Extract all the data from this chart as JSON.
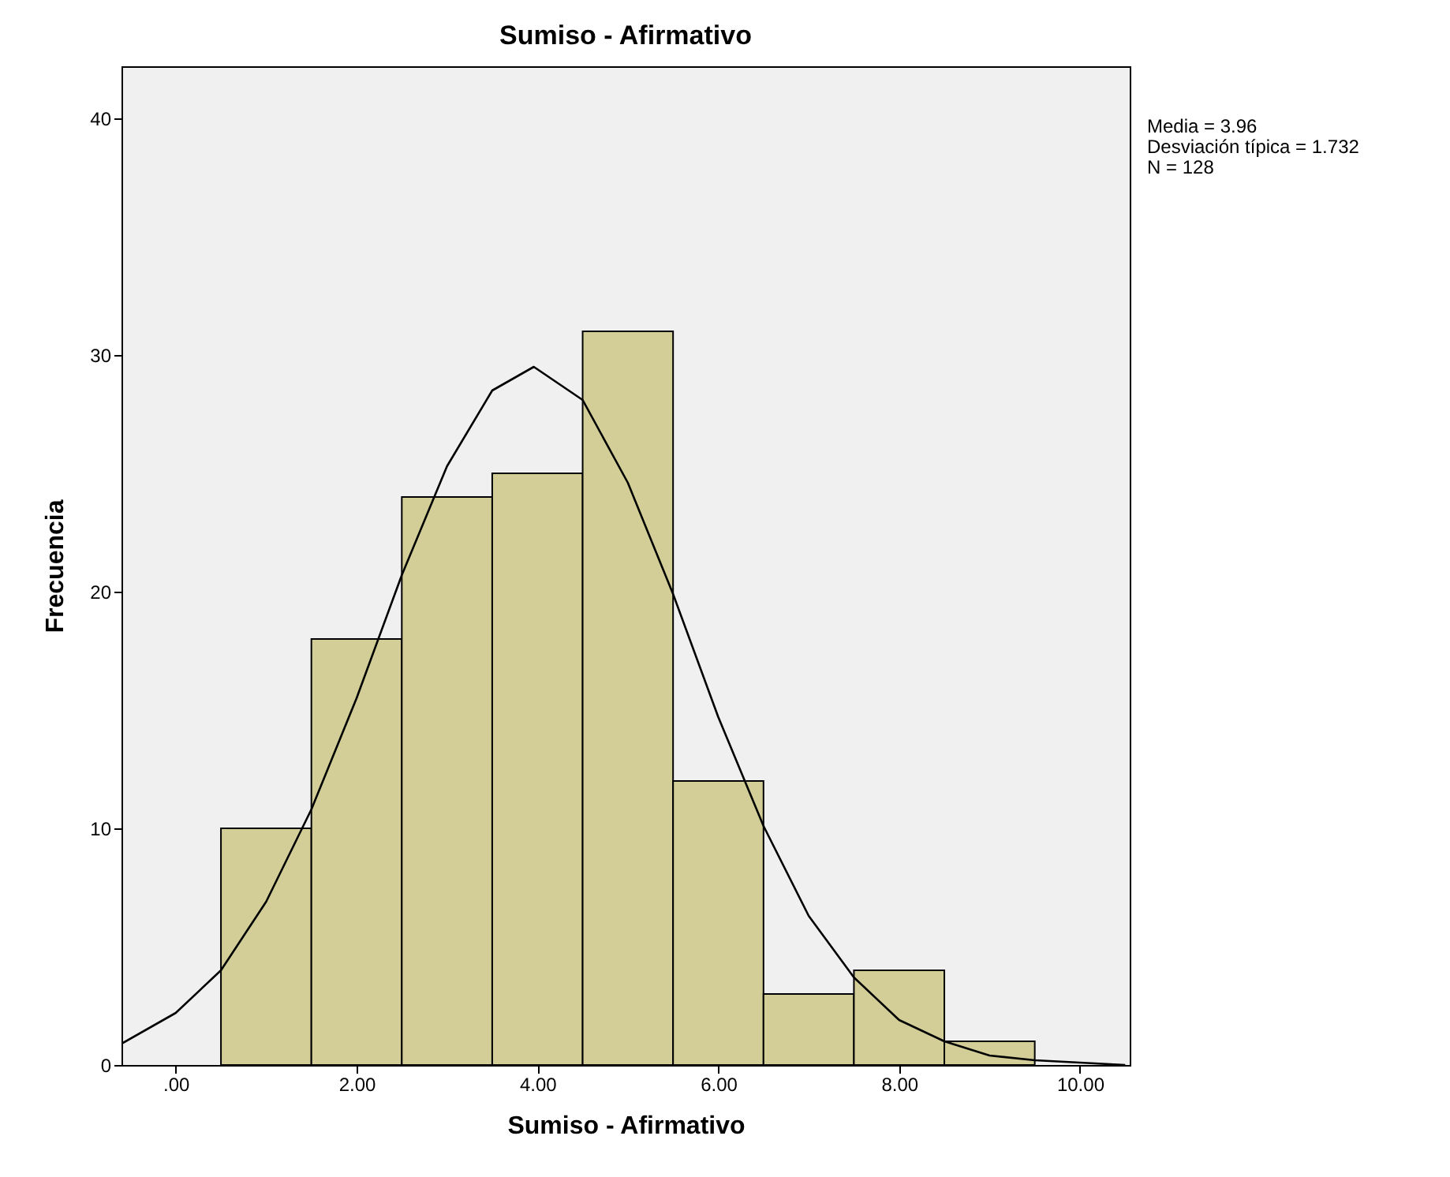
{
  "chart_data": {
    "type": "histogram",
    "title": "Sumiso - Afirmativo",
    "xlabel": "Sumiso - Afirmativo",
    "ylabel": "Frecuencia",
    "bins": [
      0.5,
      1.5,
      2.5,
      3.5,
      4.5,
      5.5,
      6.5,
      7.5,
      8.5,
      9.5
    ],
    "values": [
      10,
      18,
      24,
      25,
      31,
      12,
      3,
      4,
      1
    ],
    "color": "#d3ce97",
    "series": [
      {
        "type": "line",
        "color": "#000000",
        "x": [
          -0.6,
          0,
          0.5,
          1,
          1.5,
          2,
          2.5,
          3,
          3.5,
          3.96,
          4.5,
          5,
          5.5,
          6,
          6.5,
          7,
          7.5,
          8,
          8.5,
          9,
          9.5,
          10,
          10.5
        ],
        "values": [
          0.9,
          2.2,
          4.0,
          6.9,
          10.8,
          15.5,
          20.7,
          25.3,
          28.5,
          29.5,
          28.1,
          24.6,
          19.9,
          14.7,
          10.1,
          6.3,
          3.7,
          1.9,
          1.0,
          0.4,
          0.2,
          0.1,
          0.0
        ]
      }
    ],
    "xlim": [
      -0.6,
      10.55
    ],
    "ylim": [
      0,
      42.2
    ],
    "xticks": [
      {
        "value": 0,
        "label": ".00"
      },
      {
        "value": 2,
        "label": "2.00"
      },
      {
        "value": 4,
        "label": "4.00"
      },
      {
        "value": 6,
        "label": "6.00"
      },
      {
        "value": 8,
        "label": "8.00"
      },
      {
        "value": 10,
        "label": "10.00"
      }
    ],
    "yticks": [
      0,
      10,
      20,
      30,
      40
    ],
    "grid": false,
    "annotations": [
      "Media = 3.96",
      "Desviación típica = 1.732",
      "N = 128"
    ]
  }
}
